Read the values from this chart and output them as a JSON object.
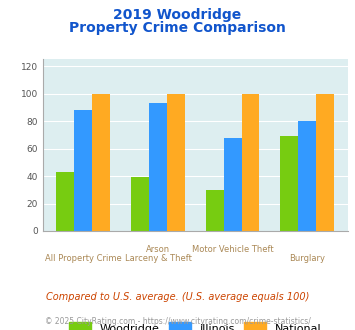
{
  "title_line1": "2019 Woodridge",
  "title_line2": "Property Crime Comparison",
  "cat_labels_top": [
    "",
    "Arson",
    "Motor Vehicle Theft",
    ""
  ],
  "cat_labels_bot": [
    "All Property Crime",
    "Larceny & Theft",
    "",
    "Burglary"
  ],
  "woodridge": [
    43,
    39,
    30,
    69
  ],
  "illinois": [
    88,
    93,
    68,
    80
  ],
  "national": [
    100,
    100,
    100,
    100
  ],
  "color_woodridge": "#77cc11",
  "color_illinois": "#3399ff",
  "color_national": "#ffaa22",
  "ylabel_ticks": [
    0,
    20,
    40,
    60,
    80,
    100,
    120
  ],
  "ylim": [
    0,
    125
  ],
  "plot_bg": "#ddeef0",
  "title_color": "#1155cc",
  "xlabel_top_color": "#aa8855",
  "xlabel_bot_color": "#aa8855",
  "legend_labels": [
    "Woodridge",
    "Illinois",
    "National"
  ],
  "footnote1": "Compared to U.S. average. (U.S. average equals 100)",
  "footnote2": "© 2025 CityRating.com - https://www.cityrating.com/crime-statistics/",
  "footnote1_color": "#cc4400",
  "footnote2_color": "#999999"
}
